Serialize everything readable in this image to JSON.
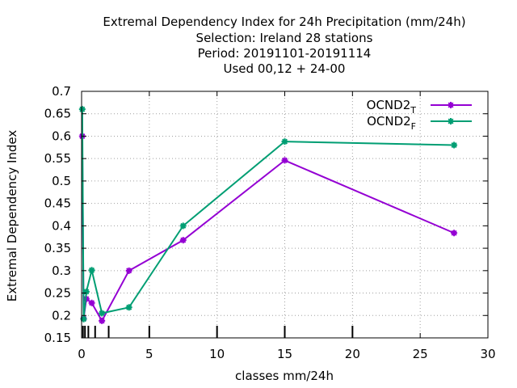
{
  "chart_data": {
    "type": "line",
    "title_lines": [
      "Extremal Dependency Index  for 24h Precipitation (mm/24h)",
      "Selection: Ireland      28 stations",
      "Period: 20191101-20191114",
      "Used  00,12  + 24-00"
    ],
    "xlabel": "classes mm/24h",
    "ylabel": "Extremal Dependency Index",
    "xlim": [
      0,
      30
    ],
    "ylim": [
      0.15,
      0.7
    ],
    "xticks": [
      0,
      5,
      10,
      15,
      20,
      25,
      30
    ],
    "xtick_labels": [
      "0",
      "5",
      "10",
      "15",
      "20",
      "25",
      "30"
    ],
    "yticks": [
      0.15,
      0.2,
      0.25,
      0.3,
      0.35,
      0.4,
      0.45,
      0.5,
      0.55,
      0.6,
      0.65,
      0.7
    ],
    "ytick_labels": [
      "0.15",
      "0.2",
      "0.25",
      "0.3",
      "0.35",
      "0.4",
      "0.45",
      "0.5",
      "0.55",
      "0.6",
      "0.65",
      "0.7"
    ],
    "grid": true,
    "legend_position": "top-right",
    "class_markers": [
      0.1,
      0.25,
      0.5,
      1,
      2,
      5,
      10,
      15,
      20
    ],
    "series": [
      {
        "name": "OCND2",
        "subscript": "T",
        "color": "#9400d3",
        "marker": "star",
        "x": [
          0.05,
          0.15,
          0.35,
          0.75,
          1.5,
          3.5,
          7.5,
          15,
          27.5
        ],
        "y": [
          0.6,
          0.193,
          0.237,
          0.228,
          0.188,
          0.3,
          0.368,
          0.546,
          0.384
        ]
      },
      {
        "name": "OCND2",
        "subscript": "F",
        "color": "#009e73",
        "marker": "star",
        "x": [
          0.05,
          0.15,
          0.35,
          0.75,
          1.5,
          3.5,
          7.5,
          15,
          27.5
        ],
        "y": [
          0.66,
          0.192,
          0.253,
          0.301,
          0.205,
          0.218,
          0.4,
          0.588,
          0.58
        ]
      }
    ]
  }
}
